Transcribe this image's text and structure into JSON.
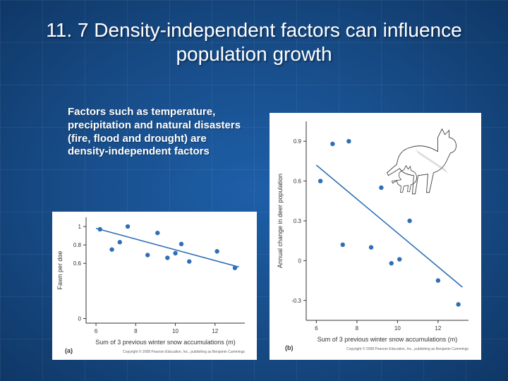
{
  "title": "11. 7 Density-independent factors can influence population growth",
  "body_text": "Factors such as temperature, precipitation and natural disasters (fire, flood and drought) are density-independent factors",
  "chart_a": {
    "type": "scatter",
    "panel_label": "(a)",
    "xlabel": "Sum of 3 previous winter snow accumulations (m)",
    "ylabel": "Fawn per doe",
    "xlim": [
      5.5,
      13.5
    ],
    "ylim": [
      -0.05,
      1.1
    ],
    "xticks": [
      6,
      8,
      10,
      12
    ],
    "yticks": [
      0,
      0.6,
      0.8,
      1.0
    ],
    "points": [
      [
        6.2,
        0.97
      ],
      [
        6.8,
        0.75
      ],
      [
        7.2,
        0.83
      ],
      [
        7.6,
        1.0
      ],
      [
        8.6,
        0.69
      ],
      [
        9.1,
        0.93
      ],
      [
        9.6,
        0.66
      ],
      [
        10.0,
        0.71
      ],
      [
        10.3,
        0.81
      ],
      [
        10.7,
        0.62
      ],
      [
        12.1,
        0.73
      ],
      [
        13.0,
        0.55
      ]
    ],
    "line": {
      "x1": 6.0,
      "y1": 0.98,
      "x2": 13.2,
      "y2": 0.56
    },
    "point_color": "#2e6fb5",
    "line_color": "#2e6fb5",
    "axis_color": "#333333",
    "background_color": "#ffffff",
    "label_fontsize": 9,
    "tick_fontsize": 8,
    "point_radius": 3.2,
    "line_width": 1.6,
    "copyright": "Copyright © 2008 Pearson Education, Inc., publishing as Benjamin Cummings"
  },
  "chart_b": {
    "type": "scatter",
    "panel_label": "(b)",
    "xlabel": "Sum of 3 previous winter snow accumulations (m)",
    "ylabel": "Annual change in deer population",
    "xlim": [
      5.5,
      13.5
    ],
    "ylim": [
      -0.45,
      1.05
    ],
    "xticks": [
      6,
      8,
      10,
      12
    ],
    "yticks": [
      -0.3,
      0,
      0.3,
      0.6,
      0.9
    ],
    "points": [
      [
        6.2,
        0.6
      ],
      [
        6.8,
        0.88
      ],
      [
        7.3,
        0.12
      ],
      [
        7.6,
        0.9
      ],
      [
        8.7,
        0.1
      ],
      [
        9.2,
        0.55
      ],
      [
        9.7,
        -0.02
      ],
      [
        10.1,
        0.01
      ],
      [
        10.6,
        0.3
      ],
      [
        12.0,
        -0.15
      ],
      [
        13.0,
        -0.33
      ]
    ],
    "line": {
      "x1": 6.0,
      "y1": 0.72,
      "x2": 13.2,
      "y2": -0.2
    },
    "point_color": "#2e6fb5",
    "line_color": "#2e6fb5",
    "axis_color": "#333333",
    "background_color": "#ffffff",
    "label_fontsize": 9,
    "tick_fontsize": 8,
    "point_radius": 3.2,
    "line_width": 1.6,
    "copyright": "Copyright © 2008 Pearson Education, Inc., publishing as Benjamin Cummings",
    "has_deer_illustration": true
  }
}
